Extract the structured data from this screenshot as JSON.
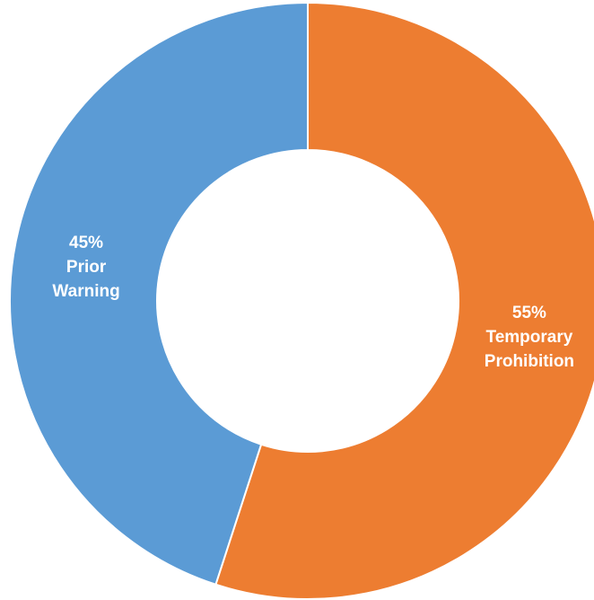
{
  "chart_data": {
    "type": "pie",
    "variant": "donut",
    "categories": [
      "Temporary Prohibition",
      "Prior Warning"
    ],
    "values": [
      55,
      45
    ],
    "labels": [
      {
        "percent": "55%",
        "lines": [
          "Temporary",
          "Prohibition"
        ]
      },
      {
        "percent": "45%",
        "lines": [
          "Prior",
          "Warning"
        ]
      }
    ],
    "colors": [
      "#ED7D31",
      "#5B9BD5"
    ],
    "legend": "none",
    "start_angle": "12 o'clock",
    "direction": "clockwise"
  }
}
